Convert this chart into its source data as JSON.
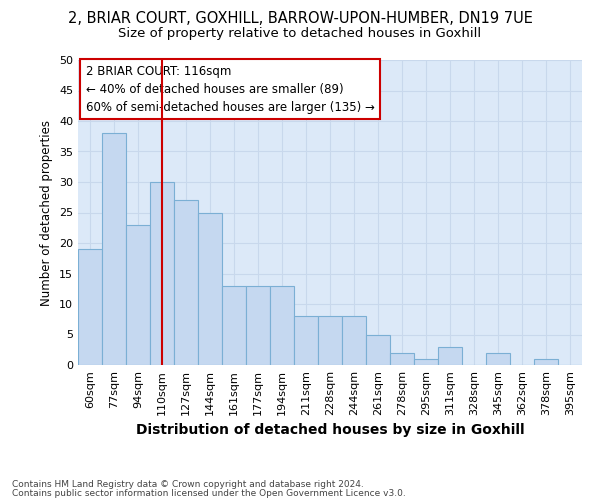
{
  "title_line1": "2, BRIAR COURT, GOXHILL, BARROW-UPON-HUMBER, DN19 7UE",
  "title_line2": "Size of property relative to detached houses in Goxhill",
  "xlabel": "Distribution of detached houses by size in Goxhill",
  "ylabel": "Number of detached properties",
  "categories": [
    "60sqm",
    "77sqm",
    "94sqm",
    "110sqm",
    "127sqm",
    "144sqm",
    "161sqm",
    "177sqm",
    "194sqm",
    "211sqm",
    "228sqm",
    "244sqm",
    "261sqm",
    "278sqm",
    "295sqm",
    "311sqm",
    "328sqm",
    "345sqm",
    "362sqm",
    "378sqm",
    "395sqm"
  ],
  "values": [
    19,
    38,
    23,
    30,
    27,
    25,
    13,
    13,
    13,
    8,
    8,
    8,
    5,
    2,
    1,
    3,
    0,
    2,
    0,
    1,
    0
  ],
  "bar_color": "#c5d8f0",
  "bar_edge_color": "#7bafd4",
  "reference_line_x": 3.0,
  "annotation_text_line1": "2 BRIAR COURT: 116sqm",
  "annotation_text_line2": "← 40% of detached houses are smaller (89)",
  "annotation_text_line3": "60% of semi-detached houses are larger (135) →",
  "annotation_box_facecolor": "#ffffff",
  "annotation_box_edgecolor": "#cc0000",
  "ref_line_color": "#cc0000",
  "ylim": [
    0,
    50
  ],
  "yticks": [
    0,
    5,
    10,
    15,
    20,
    25,
    30,
    35,
    40,
    45,
    50
  ],
  "grid_color": "#c8d8ec",
  "background_color": "#dce9f8",
  "footer_line1": "Contains HM Land Registry data © Crown copyright and database right 2024.",
  "footer_line2": "Contains public sector information licensed under the Open Government Licence v3.0.",
  "title_fontsize": 10.5,
  "subtitle_fontsize": 9.5,
  "ylabel_fontsize": 8.5,
  "xlabel_fontsize": 10,
  "tick_fontsize": 8,
  "annotation_fontsize": 8.5,
  "footer_fontsize": 6.5
}
